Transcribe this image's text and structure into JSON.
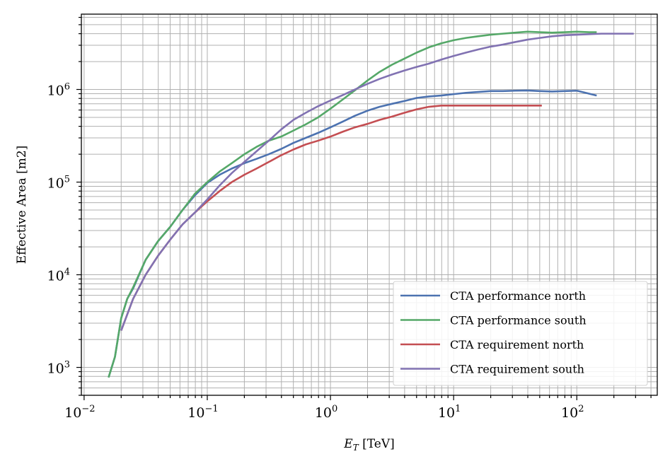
{
  "chart_data": {
    "type": "line",
    "xlabel": "E_T [TeV]",
    "ylabel": "Effective Area [m2]",
    "xscale": "log",
    "yscale": "log",
    "xlim": [
      0.0095,
      450
    ],
    "ylim": [
      500,
      6500000
    ],
    "xticks": [
      {
        "value": 0.01,
        "base": "10",
        "exp": "−2"
      },
      {
        "value": 0.1,
        "base": "10",
        "exp": "−1"
      },
      {
        "value": 1,
        "base": "10",
        "exp": "0"
      },
      {
        "value": 10,
        "base": "10",
        "exp": "1"
      },
      {
        "value": 100,
        "base": "10",
        "exp": "2"
      }
    ],
    "yticks": [
      {
        "value": 1000,
        "base": "10",
        "exp": "3"
      },
      {
        "value": 10000,
        "base": "10",
        "exp": "4"
      },
      {
        "value": 100000,
        "base": "10",
        "exp": "5"
      },
      {
        "value": 1000000,
        "base": "10",
        "exp": "6"
      }
    ],
    "grid": true,
    "legend_position": "lower-right",
    "series": [
      {
        "name": "CTA performance north",
        "color": "#4c72b0",
        "x": [
          0.0158,
          0.0178,
          0.02,
          0.0224,
          0.0251,
          0.0316,
          0.0398,
          0.0501,
          0.063,
          0.0794,
          0.1,
          0.126,
          0.158,
          0.2,
          0.251,
          0.316,
          0.398,
          0.501,
          0.63,
          0.794,
          1.0,
          1.26,
          1.58,
          2.0,
          2.51,
          3.16,
          3.98,
          5.01,
          6.3,
          7.94,
          10,
          12.6,
          15.8,
          20,
          25.1,
          31.6,
          39.8,
          50.1,
          63,
          79.4,
          100,
          126,
          145
        ],
        "y": [
          780,
          1300,
          3400,
          5500,
          7200,
          14500,
          23000,
          33000,
          50000,
          72000,
          98000,
          120000,
          140000,
          160000,
          178000,
          200000,
          228000,
          265000,
          300000,
          340000,
          390000,
          450000,
          520000,
          590000,
          650000,
          700000,
          750000,
          810000,
          840000,
          860000,
          890000,
          920000,
          940000,
          960000,
          960000,
          970000,
          975000,
          960000,
          950000,
          960000,
          970000,
          900000,
          860000
        ]
      },
      {
        "name": "CTA performance south",
        "color": "#55a868",
        "x": [
          0.0158,
          0.0178,
          0.02,
          0.0224,
          0.0251,
          0.0316,
          0.0398,
          0.0501,
          0.063,
          0.0794,
          0.1,
          0.126,
          0.158,
          0.2,
          0.251,
          0.316,
          0.398,
          0.501,
          0.63,
          0.794,
          1.0,
          1.26,
          1.58,
          2.0,
          2.51,
          3.16,
          3.98,
          5.01,
          6.3,
          7.94,
          10,
          12.6,
          15.8,
          20,
          25.1,
          31.6,
          39.8,
          50.1,
          63,
          79.4,
          100,
          126,
          145
        ],
        "y": [
          780,
          1300,
          3400,
          5500,
          7400,
          14500,
          23000,
          33000,
          50000,
          75000,
          100000,
          130000,
          160000,
          200000,
          240000,
          280000,
          310000,
          360000,
          420000,
          500000,
          620000,
          780000,
          980000,
          1250000,
          1550000,
          1850000,
          2150000,
          2500000,
          2850000,
          3150000,
          3400000,
          3600000,
          3750000,
          3900000,
          4000000,
          4100000,
          4200000,
          4150000,
          4100000,
          4150000,
          4200000,
          4150000,
          4150000
        ]
      },
      {
        "name": "CTA requirement north",
        "color": "#c44e52",
        "x": [
          0.02,
          0.025,
          0.0316,
          0.0398,
          0.0501,
          0.063,
          0.0794,
          0.1,
          0.126,
          0.158,
          0.2,
          0.251,
          0.316,
          0.398,
          0.501,
          0.63,
          0.794,
          1.0,
          1.26,
          1.58,
          2.0,
          2.51,
          3.16,
          3.98,
          5.01,
          6.3,
          7.94,
          10,
          12.6,
          15.8,
          20,
          25.1,
          31.6,
          39.8,
          50.1,
          52
        ],
        "y": [
          2500,
          5500,
          10000,
          16000,
          24000,
          35000,
          47000,
          62000,
          80000,
          100000,
          120000,
          140000,
          165000,
          195000,
          225000,
          255000,
          280000,
          310000,
          350000,
          390000,
          425000,
          470000,
          510000,
          560000,
          610000,
          650000,
          670000,
          670000,
          670000,
          670000,
          670000,
          670000,
          670000,
          670000,
          670000,
          670000
        ]
      },
      {
        "name": "CTA requirement south",
        "color": "#8172b2",
        "x": [
          0.02,
          0.025,
          0.0316,
          0.0398,
          0.0501,
          0.063,
          0.0794,
          0.1,
          0.126,
          0.158,
          0.2,
          0.251,
          0.316,
          0.398,
          0.501,
          0.63,
          0.794,
          1.0,
          1.26,
          1.58,
          2.0,
          2.51,
          3.16,
          3.98,
          5.01,
          6.3,
          7.94,
          10,
          12.6,
          15.8,
          20,
          25.1,
          31.6,
          39.8,
          50.1,
          63,
          79.4,
          100,
          126,
          158,
          200,
          251,
          290
        ],
        "y": [
          2500,
          5500,
          10000,
          16000,
          24000,
          35000,
          47000,
          65000,
          92000,
          125000,
          165000,
          215000,
          280000,
          370000,
          470000,
          560000,
          660000,
          760000,
          870000,
          1000000,
          1150000,
          1300000,
          1450000,
          1600000,
          1750000,
          1900000,
          2100000,
          2300000,
          2500000,
          2700000,
          2900000,
          3050000,
          3250000,
          3450000,
          3600000,
          3750000,
          3850000,
          3900000,
          3950000,
          4000000,
          4000000,
          4000000,
          4000000
        ]
      }
    ]
  }
}
